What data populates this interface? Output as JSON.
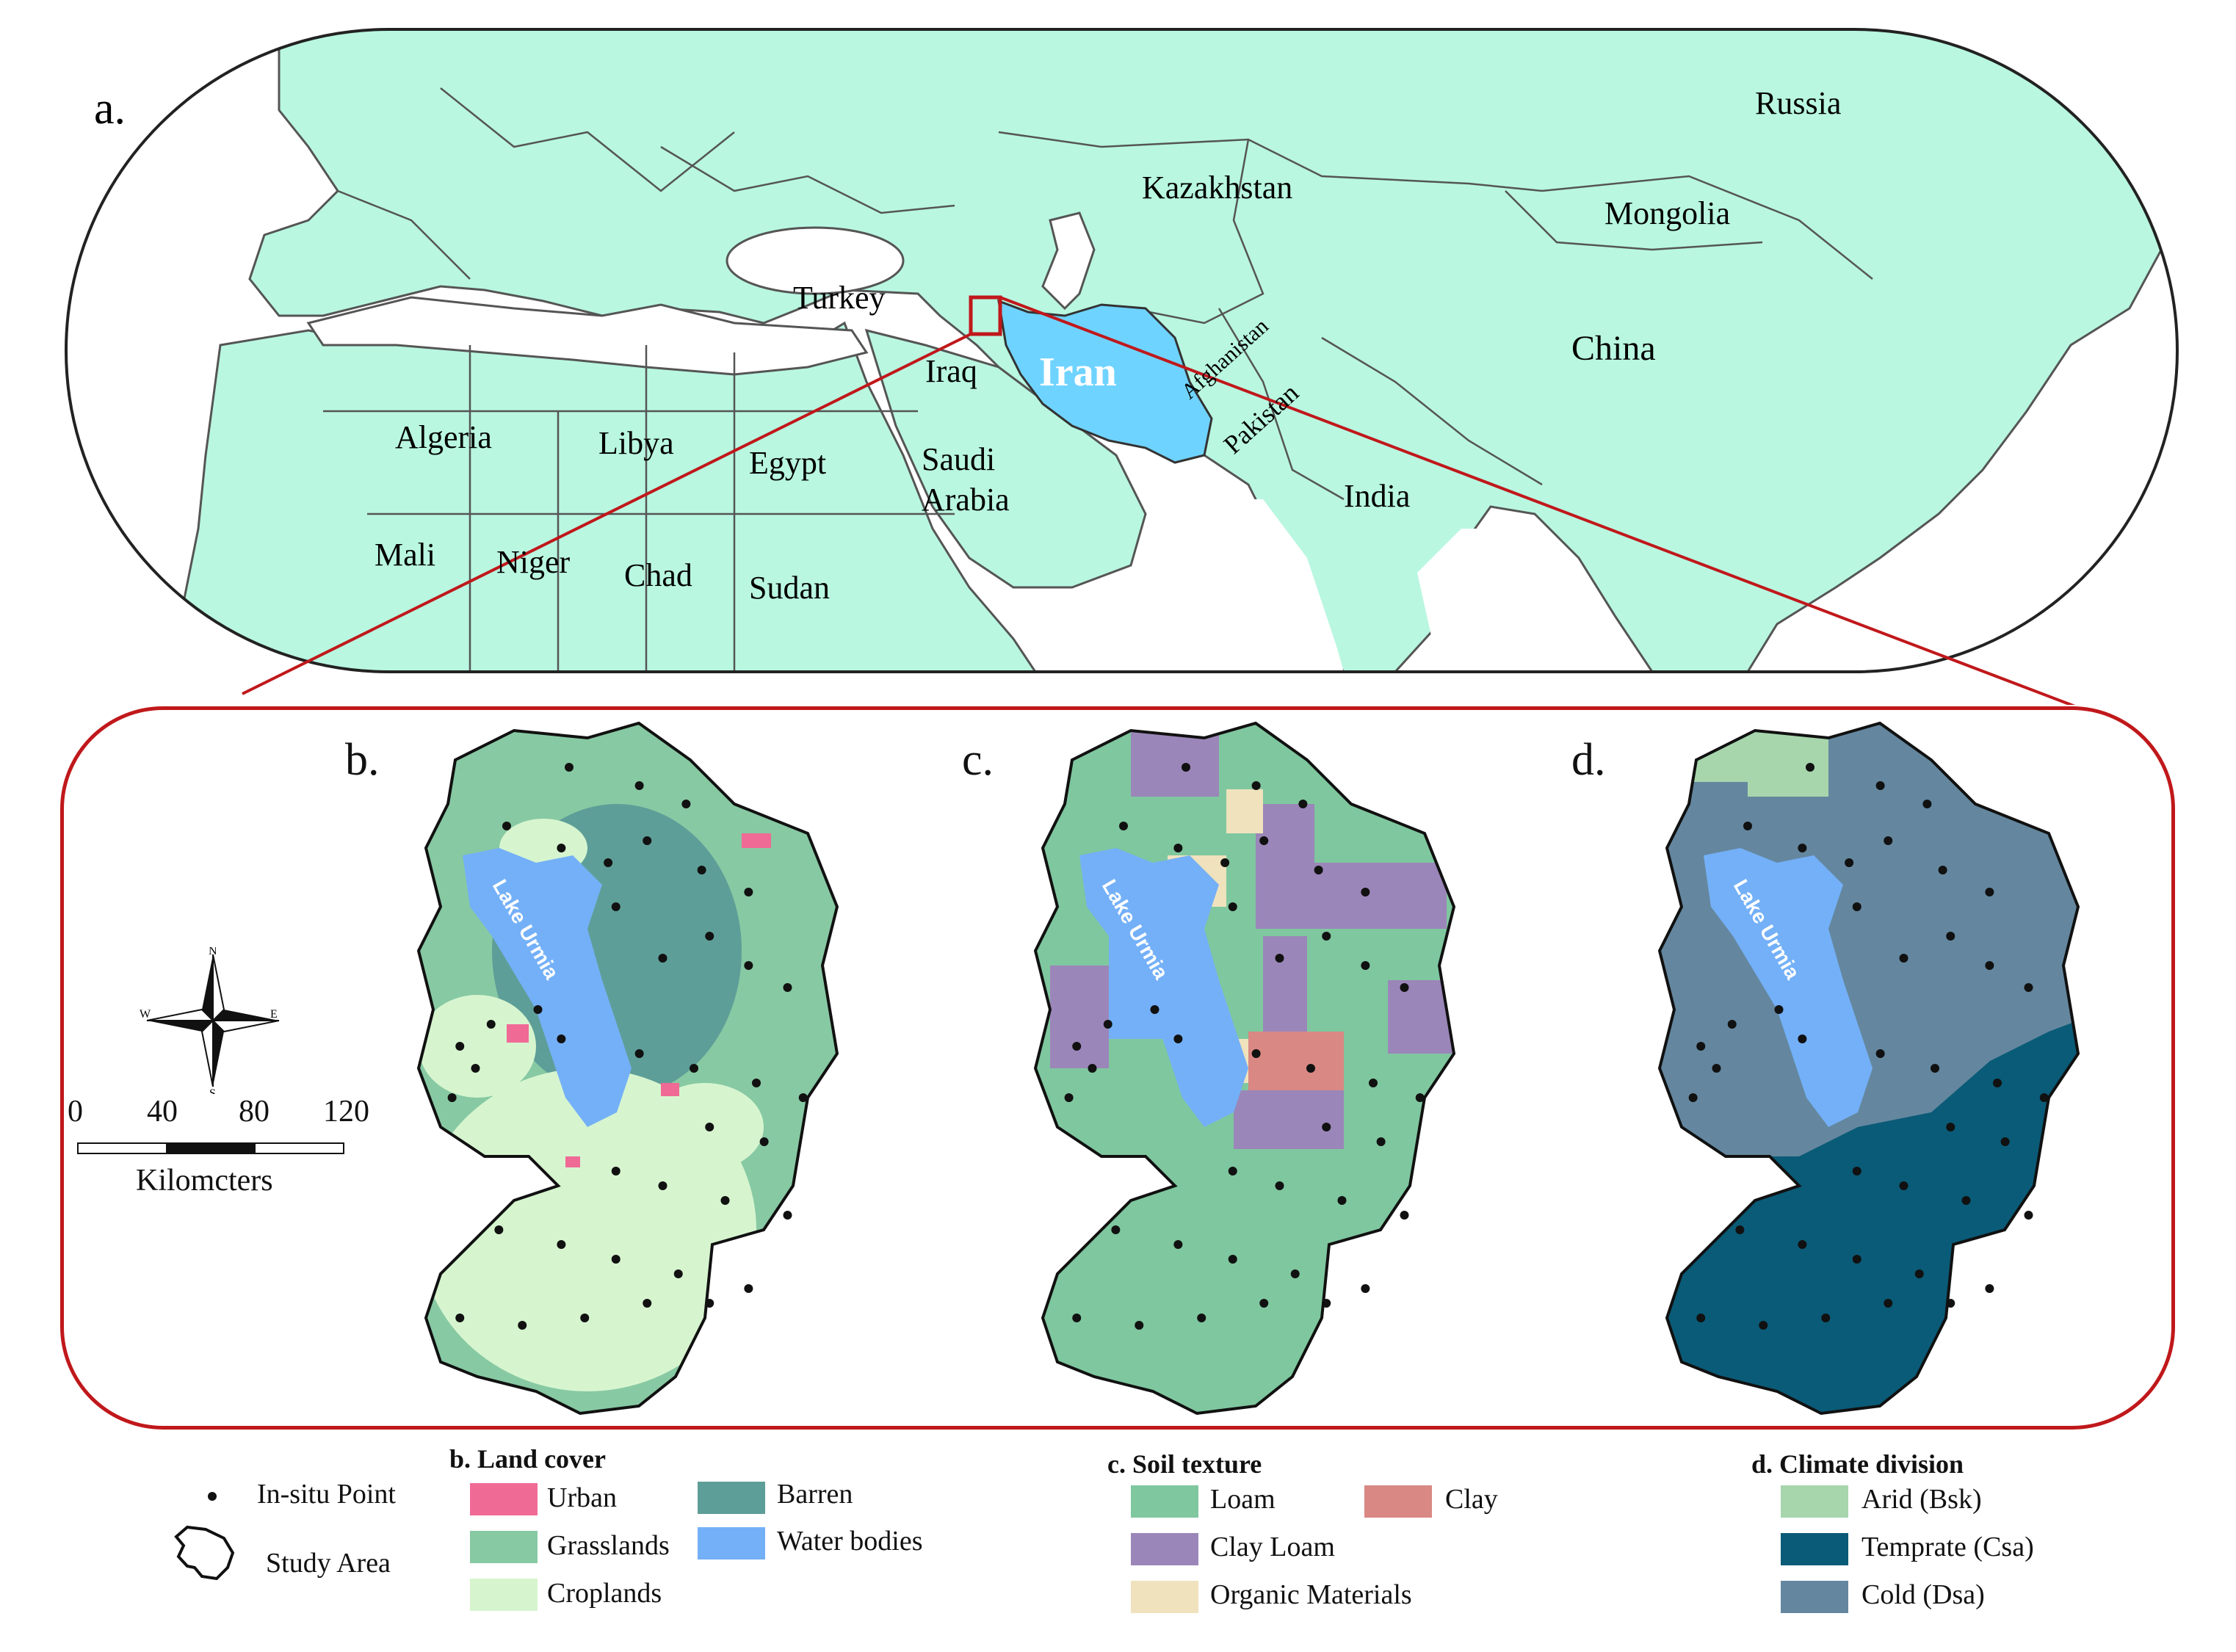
{
  "panel_labels": {
    "a": "a.",
    "b": "b.",
    "c": "c.",
    "d": "d."
  },
  "world_map": {
    "countries": {
      "russia": "Russia",
      "kazakhstan": "Kazakhstan",
      "mongolia": "Mongolia",
      "turkey": "Turkey",
      "iraq": "Iraq",
      "iran": "Iran",
      "afghanistan": "Afghanistan",
      "pakistan": "Pakistan",
      "china": "China",
      "algeria": "Algeria",
      "libya": "Libya",
      "egypt": "Egypt",
      "saudi_1": "Saudi",
      "saudi_2": "Arabia",
      "india": "India",
      "mali": "Mali",
      "niger": "Niger",
      "chad": "Chad",
      "sudan": "Sudan"
    },
    "colors": {
      "land": "#b9f7e1",
      "iran": "#6fd3ff",
      "border": "#555555",
      "highlight": "#c0181b"
    }
  },
  "lake_label": "Lake Urmia",
  "scale_bar": {
    "ticks": [
      "0",
      "40",
      "80",
      "120"
    ],
    "unit": "Kilomcters"
  },
  "compass": {
    "n": "N",
    "s": "S",
    "e": "E",
    "w": "W"
  },
  "legend": {
    "in_situ": "In-situ Point",
    "study_area": "Study Area",
    "land_cover": {
      "title": "b. Land cover",
      "items": [
        {
          "label": "Urban",
          "color": "#f06a96"
        },
        {
          "label": "Barren",
          "color": "#5e9e98"
        },
        {
          "label": "Grasslands",
          "color": "#87c9a3"
        },
        {
          "label": "Water bodies",
          "color": "#74b0f7"
        },
        {
          "label": "Croplands",
          "color": "#d6f5cf"
        }
      ]
    },
    "soil_texture": {
      "title": "c. Soil texture",
      "items": [
        {
          "label": "Loam",
          "color": "#7fc79f"
        },
        {
          "label": "Clay",
          "color": "#d98883"
        },
        {
          "label": "Clay Loam",
          "color": "#9b86b9"
        },
        {
          "label": "Organic Materials",
          "color": "#efe2bd"
        }
      ]
    },
    "climate": {
      "title": "d. Climate division",
      "items": [
        {
          "label": "Arid (Bsk)",
          "color": "#a7d6ad"
        },
        {
          "label": "Temprate (Csa)",
          "color": "#0a5b77"
        },
        {
          "label": "Cold (Dsa)",
          "color": "#64879f"
        }
      ]
    }
  }
}
